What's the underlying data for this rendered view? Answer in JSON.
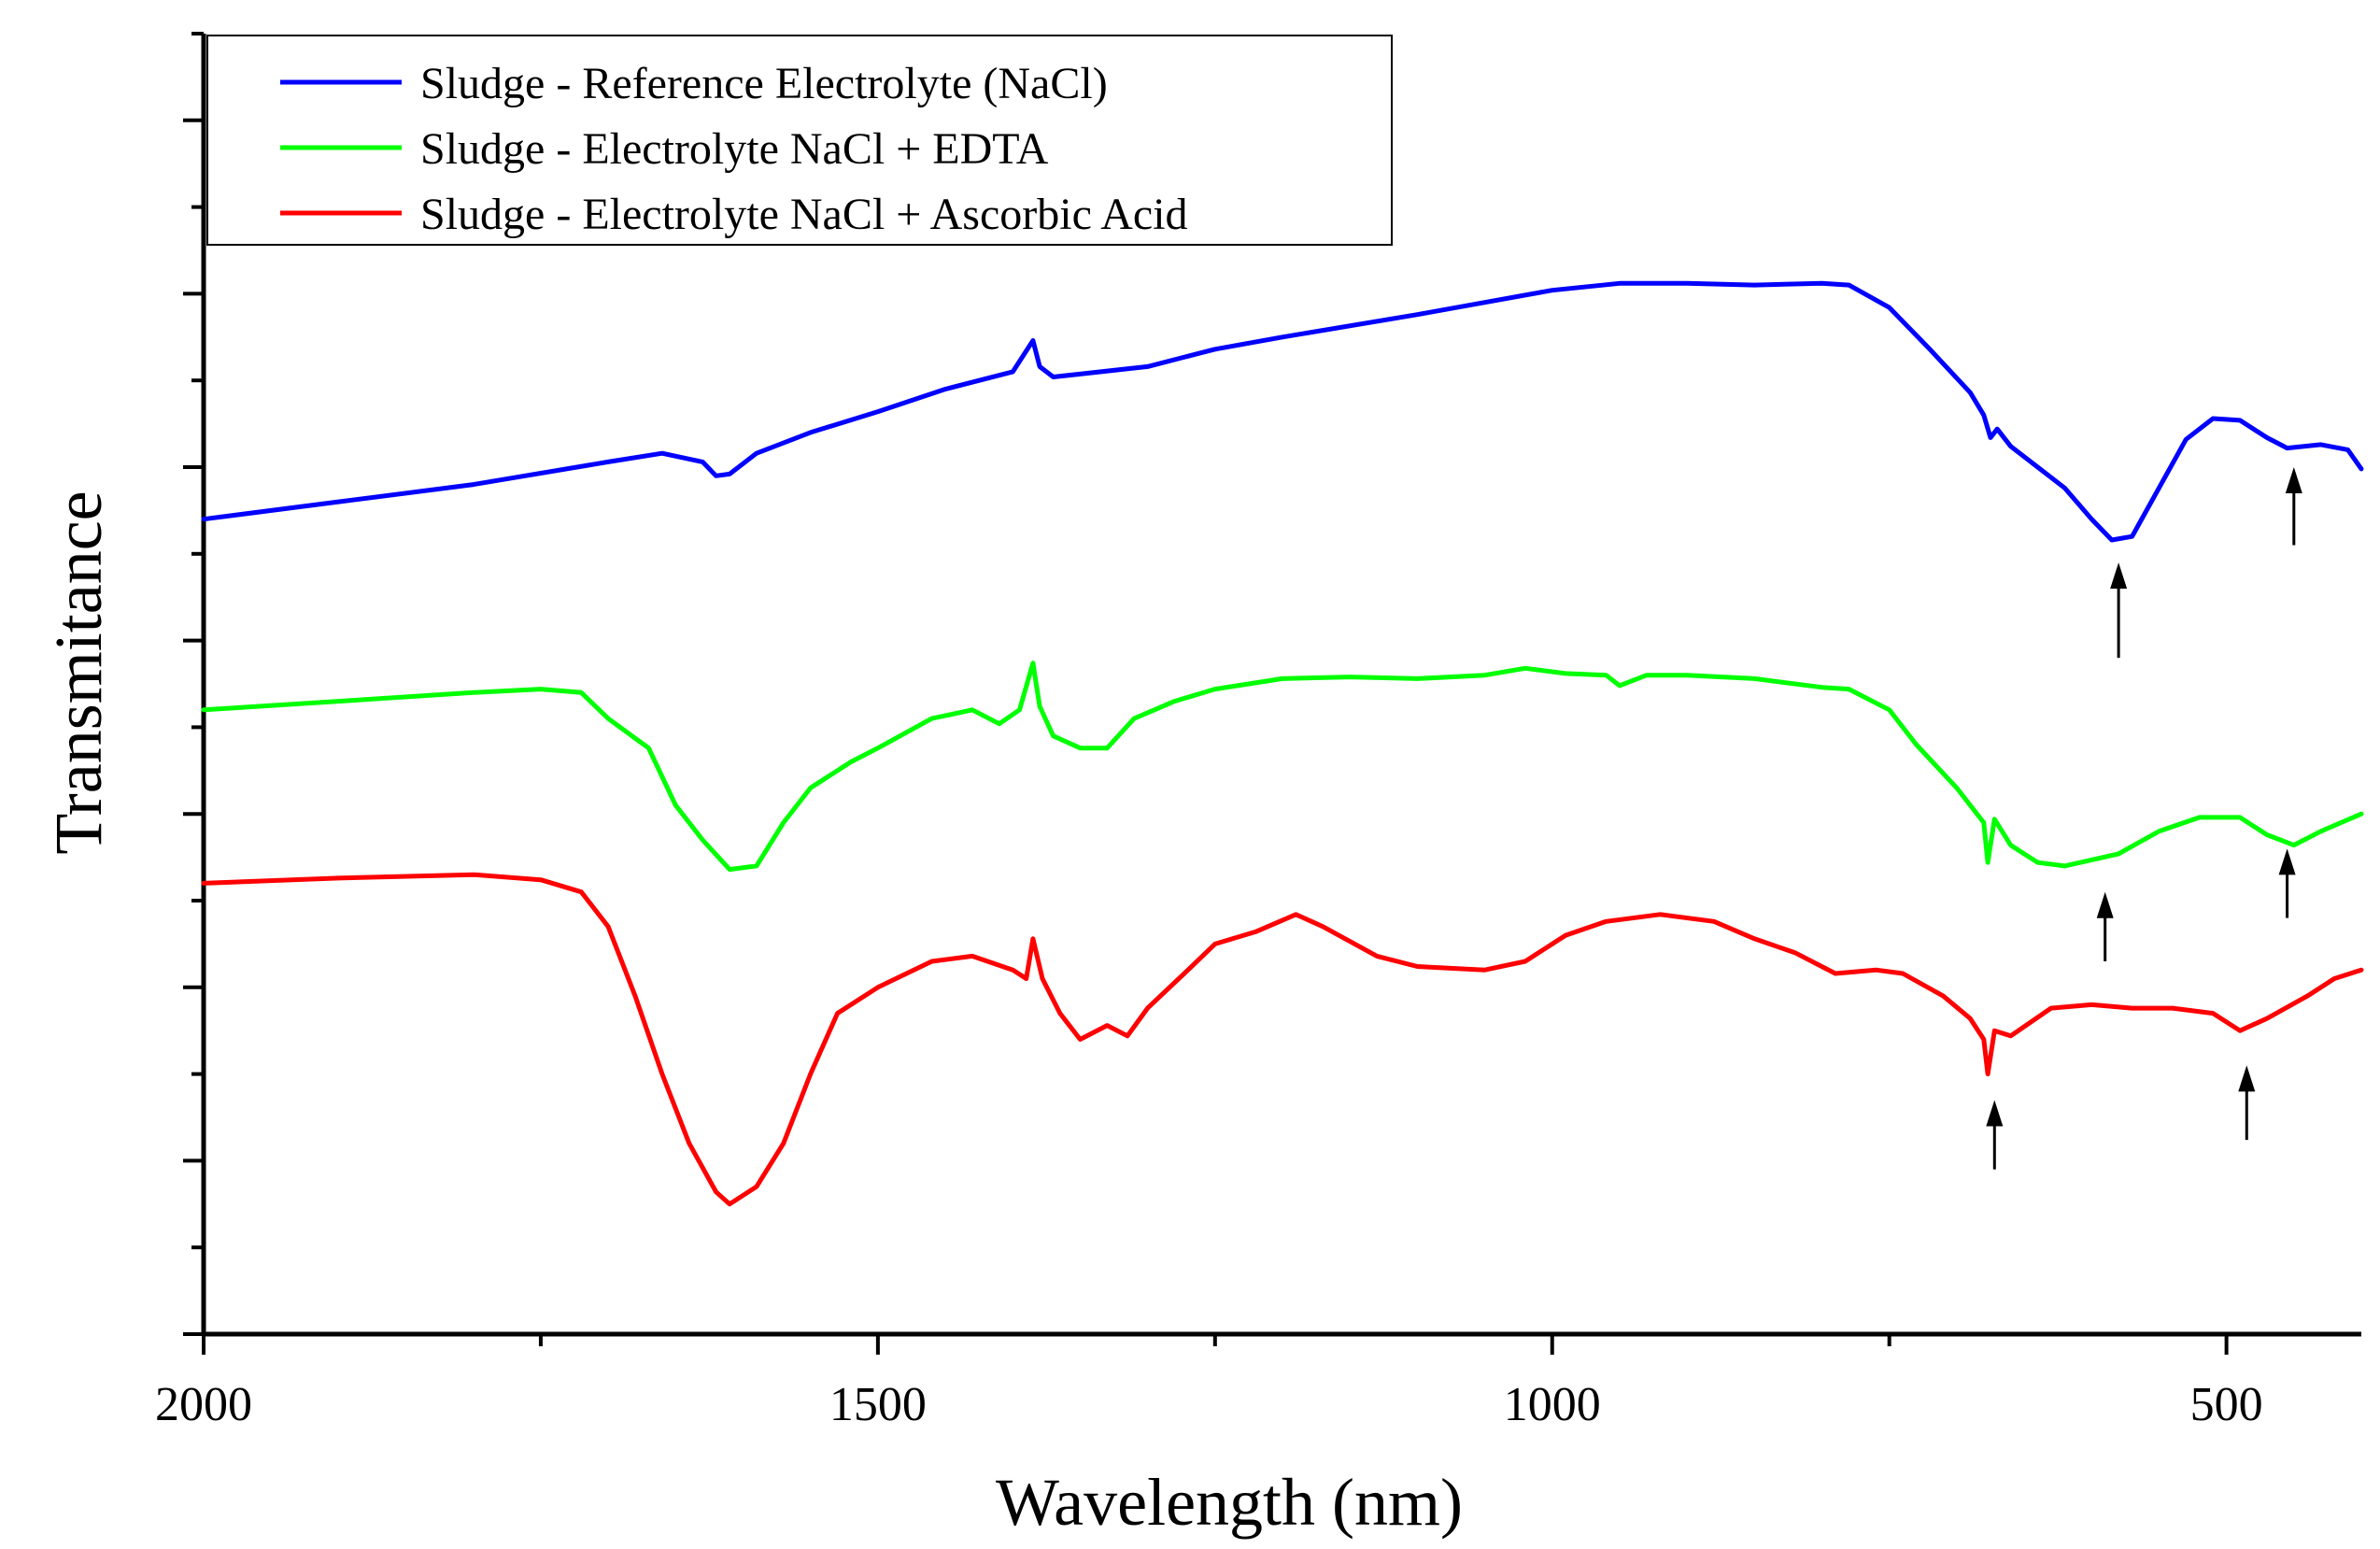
{
  "chart_data": {
    "type": "line",
    "title": "",
    "xlabel": "Wavelength (nm)",
    "ylabel": "Transmitance",
    "xlim": [
      2000,
      400
    ],
    "ylim": [
      0,
      7.5
    ],
    "x_reversed": true,
    "x_ticks": [
      2000,
      1500,
      1000,
      500
    ],
    "x_tick_labels": [
      "2000",
      "1500",
      "1000",
      "500"
    ],
    "y_tick_labels_shown": false,
    "grid": false,
    "legend_position": "top-left",
    "series": [
      {
        "name": "Sludge - Reference Electrolyte (NaCl)",
        "color": "#0000ff",
        "points": [
          [
            2000,
            4.7
          ],
          [
            1900,
            4.8
          ],
          [
            1800,
            4.9
          ],
          [
            1700,
            5.03
          ],
          [
            1660,
            5.08
          ],
          [
            1630,
            5.03
          ],
          [
            1620,
            4.95
          ],
          [
            1610,
            4.96
          ],
          [
            1590,
            5.08
          ],
          [
            1550,
            5.2
          ],
          [
            1500,
            5.32
          ],
          [
            1450,
            5.45
          ],
          [
            1400,
            5.55
          ],
          [
            1385,
            5.73
          ],
          [
            1380,
            5.58
          ],
          [
            1370,
            5.52
          ],
          [
            1300,
            5.58
          ],
          [
            1250,
            5.68
          ],
          [
            1200,
            5.75
          ],
          [
            1100,
            5.88
          ],
          [
            1000,
            6.02
          ],
          [
            950,
            6.06
          ],
          [
            900,
            6.06
          ],
          [
            850,
            6.05
          ],
          [
            800,
            6.06
          ],
          [
            780,
            6.05
          ],
          [
            750,
            5.92
          ],
          [
            720,
            5.68
          ],
          [
            690,
            5.43
          ],
          [
            680,
            5.3
          ],
          [
            675,
            5.17
          ],
          [
            670,
            5.22
          ],
          [
            660,
            5.12
          ],
          [
            640,
            5.0
          ],
          [
            620,
            4.88
          ],
          [
            600,
            4.7
          ],
          [
            585,
            4.58
          ],
          [
            570,
            4.6
          ],
          [
            550,
            4.88
          ],
          [
            530,
            5.16
          ],
          [
            510,
            5.28
          ],
          [
            490,
            5.27
          ],
          [
            470,
            5.17
          ],
          [
            455,
            5.11
          ],
          [
            430,
            5.13
          ],
          [
            410,
            5.1
          ],
          [
            400,
            4.99
          ]
        ]
      },
      {
        "name": "Sludge - Electrolyte NaCl + EDTA",
        "color": "#00ff00",
        "points": [
          [
            2000,
            3.6
          ],
          [
            1900,
            3.65
          ],
          [
            1800,
            3.7
          ],
          [
            1750,
            3.72
          ],
          [
            1720,
            3.7
          ],
          [
            1700,
            3.55
          ],
          [
            1670,
            3.38
          ],
          [
            1650,
            3.05
          ],
          [
            1630,
            2.85
          ],
          [
            1610,
            2.68
          ],
          [
            1590,
            2.7
          ],
          [
            1570,
            2.95
          ],
          [
            1550,
            3.15
          ],
          [
            1520,
            3.3
          ],
          [
            1500,
            3.38
          ],
          [
            1460,
            3.55
          ],
          [
            1430,
            3.6
          ],
          [
            1410,
            3.52
          ],
          [
            1395,
            3.6
          ],
          [
            1385,
            3.87
          ],
          [
            1380,
            3.62
          ],
          [
            1370,
            3.45
          ],
          [
            1350,
            3.38
          ],
          [
            1330,
            3.38
          ],
          [
            1310,
            3.55
          ],
          [
            1280,
            3.65
          ],
          [
            1250,
            3.72
          ],
          [
            1200,
            3.78
          ],
          [
            1150,
            3.79
          ],
          [
            1100,
            3.78
          ],
          [
            1050,
            3.8
          ],
          [
            1020,
            3.84
          ],
          [
            990,
            3.81
          ],
          [
            960,
            3.8
          ],
          [
            950,
            3.74
          ],
          [
            930,
            3.8
          ],
          [
            900,
            3.8
          ],
          [
            850,
            3.78
          ],
          [
            800,
            3.73
          ],
          [
            780,
            3.72
          ],
          [
            750,
            3.6
          ],
          [
            730,
            3.4
          ],
          [
            700,
            3.15
          ],
          [
            680,
            2.95
          ],
          [
            677,
            2.72
          ],
          [
            672,
            2.97
          ],
          [
            660,
            2.82
          ],
          [
            640,
            2.72
          ],
          [
            620,
            2.7
          ],
          [
            580,
            2.77
          ],
          [
            550,
            2.9
          ],
          [
            520,
            2.98
          ],
          [
            490,
            2.98
          ],
          [
            470,
            2.88
          ],
          [
            450,
            2.82
          ],
          [
            430,
            2.9
          ],
          [
            400,
            3.0
          ]
        ]
      },
      {
        "name": "Sludge - Electrolyte NaCl + Ascorbic Acid",
        "color": "#ff0000",
        "points": [
          [
            2000,
            2.6
          ],
          [
            1900,
            2.63
          ],
          [
            1800,
            2.65
          ],
          [
            1750,
            2.62
          ],
          [
            1720,
            2.55
          ],
          [
            1700,
            2.35
          ],
          [
            1680,
            1.95
          ],
          [
            1660,
            1.5
          ],
          [
            1640,
            1.1
          ],
          [
            1620,
            0.82
          ],
          [
            1610,
            0.75
          ],
          [
            1590,
            0.85
          ],
          [
            1570,
            1.1
          ],
          [
            1550,
            1.5
          ],
          [
            1530,
            1.85
          ],
          [
            1500,
            2.0
          ],
          [
            1460,
            2.15
          ],
          [
            1430,
            2.18
          ],
          [
            1400,
            2.1
          ],
          [
            1390,
            2.05
          ],
          [
            1385,
            2.28
          ],
          [
            1378,
            2.05
          ],
          [
            1365,
            1.85
          ],
          [
            1350,
            1.7
          ],
          [
            1330,
            1.78
          ],
          [
            1315,
            1.72
          ],
          [
            1300,
            1.88
          ],
          [
            1270,
            2.1
          ],
          [
            1250,
            2.25
          ],
          [
            1220,
            2.32
          ],
          [
            1190,
            2.42
          ],
          [
            1170,
            2.35
          ],
          [
            1130,
            2.18
          ],
          [
            1100,
            2.12
          ],
          [
            1050,
            2.1
          ],
          [
            1020,
            2.15
          ],
          [
            990,
            2.3
          ],
          [
            960,
            2.38
          ],
          [
            920,
            2.42
          ],
          [
            880,
            2.38
          ],
          [
            850,
            2.28
          ],
          [
            820,
            2.2
          ],
          [
            790,
            2.08
          ],
          [
            760,
            2.1
          ],
          [
            740,
            2.08
          ],
          [
            710,
            1.95
          ],
          [
            690,
            1.82
          ],
          [
            680,
            1.7
          ],
          [
            677,
            1.5
          ],
          [
            672,
            1.75
          ],
          [
            660,
            1.72
          ],
          [
            630,
            1.88
          ],
          [
            600,
            1.9
          ],
          [
            570,
            1.88
          ],
          [
            540,
            1.88
          ],
          [
            510,
            1.85
          ],
          [
            490,
            1.75
          ],
          [
            470,
            1.82
          ],
          [
            440,
            1.95
          ],
          [
            420,
            2.05
          ],
          [
            400,
            2.1
          ]
        ]
      }
    ],
    "annotations": [
      {
        "type": "arrow",
        "x": 580,
        "y_tail": 3.9,
        "y_head": 4.45,
        "color": "#000000"
      },
      {
        "type": "arrow",
        "x": 450,
        "y_tail": 4.55,
        "y_head": 5.0,
        "color": "#000000"
      },
      {
        "type": "arrow",
        "x": 590,
        "y_tail": 2.15,
        "y_head": 2.55,
        "color": "#000000"
      },
      {
        "type": "arrow",
        "x": 455,
        "y_tail": 2.4,
        "y_head": 2.8,
        "color": "#000000"
      },
      {
        "type": "arrow",
        "x": 672,
        "y_tail": 0.95,
        "y_head": 1.35,
        "color": "#000000"
      },
      {
        "type": "arrow",
        "x": 485,
        "y_tail": 1.12,
        "y_head": 1.55,
        "color": "#000000"
      }
    ]
  }
}
